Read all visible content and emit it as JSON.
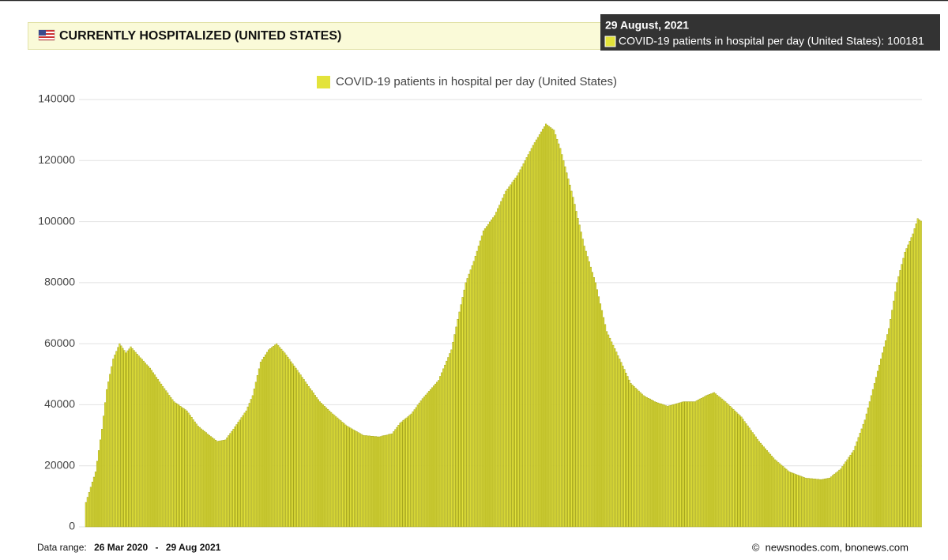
{
  "chart_data": {
    "type": "bar",
    "title": "CURRENTLY HOSPITALIZED (UNITED STATES)",
    "series": [
      {
        "name": "COVID-19 patients in hospital per day (United States)",
        "color": "#e3e33b",
        "border_color": "#a3a31a",
        "values": [
          8000,
          9700,
          11300,
          13000,
          14700,
          16300,
          18000,
          21500,
          25000,
          28500,
          32000,
          36300,
          40700,
          45000,
          47500,
          50000,
          52500,
          55000,
          56300,
          57500,
          58800,
          60000,
          59300,
          58500,
          57800,
          57000,
          57700,
          58300,
          59000,
          58400,
          57800,
          57200,
          56600,
          56000,
          55400,
          54900,
          54300,
          53700,
          53100,
          52600,
          52000,
          51300,
          50500,
          49800,
          49000,
          48300,
          47500,
          46800,
          46000,
          45300,
          44600,
          43900,
          43100,
          42400,
          41700,
          41000,
          40600,
          40300,
          39900,
          39500,
          39100,
          38800,
          38400,
          38000,
          37300,
          36600,
          35900,
          35100,
          34400,
          33700,
          33000,
          32600,
          32100,
          31700,
          31300,
          30900,
          30400,
          30000,
          29600,
          29200,
          28800,
          28400,
          28000,
          28100,
          28200,
          28300,
          28400,
          28500,
          29200,
          29900,
          30600,
          31300,
          32000,
          32800,
          33500,
          34300,
          35000,
          35800,
          36500,
          37300,
          38000,
          39300,
          40500,
          41800,
          43000,
          45200,
          47400,
          49600,
          51800,
          54000,
          54800,
          55600,
          56400,
          57200,
          58000,
          58400,
          58800,
          59200,
          59600,
          60000,
          59400,
          58800,
          58200,
          57600,
          57000,
          56300,
          55600,
          54900,
          54100,
          53400,
          52700,
          52000,
          51300,
          50500,
          49800,
          49000,
          48300,
          47500,
          46800,
          46000,
          45300,
          44600,
          43900,
          43100,
          42400,
          41700,
          41000,
          40500,
          40000,
          39500,
          39000,
          38500,
          38000,
          37500,
          37000,
          36600,
          36100,
          35700,
          35200,
          34800,
          34300,
          33900,
          33400,
          33000,
          32700,
          32400,
          32100,
          31800,
          31500,
          31200,
          30900,
          30600,
          30300,
          30000,
          29900,
          29900,
          29800,
          29800,
          29700,
          29700,
          29600,
          29600,
          29500,
          29500,
          29600,
          29800,
          29900,
          30000,
          30100,
          30300,
          30400,
          30500,
          31200,
          31900,
          32600,
          33300,
          34000,
          34400,
          34900,
          35300,
          35700,
          36100,
          36600,
          37000,
          37700,
          38400,
          39100,
          39900,
          40600,
          41300,
          42000,
          42600,
          43200,
          43800,
          44400,
          45000,
          45600,
          46200,
          46800,
          47400,
          48000,
          49300,
          50500,
          51800,
          53000,
          54300,
          55500,
          56800,
          58000,
          60500,
          63000,
          65500,
          68000,
          70400,
          72800,
          75200,
          77600,
          80000,
          81400,
          82800,
          84200,
          85600,
          87000,
          88700,
          90300,
          92000,
          93700,
          95300,
          97000,
          97700,
          98400,
          99100,
          99900,
          100600,
          101300,
          102000,
          103100,
          104300,
          105400,
          106600,
          107700,
          108900,
          110000,
          110700,
          111400,
          112100,
          112900,
          113600,
          114300,
          115000,
          116000,
          117000,
          118000,
          119000,
          120000,
          121000,
          122000,
          123000,
          124000,
          125000,
          125900,
          126800,
          127600,
          128500,
          129400,
          130300,
          131100,
          132000,
          131600,
          131200,
          130800,
          130400,
          130000,
          128500,
          127000,
          125500,
          124000,
          122000,
          120000,
          118000,
          116000,
          114000,
          112000,
          110000,
          108000,
          105700,
          103400,
          101100,
          98900,
          96600,
          94300,
          92000,
          90300,
          88600,
          86900,
          85100,
          83400,
          81700,
          80000,
          77700,
          75400,
          73100,
          70900,
          68600,
          66300,
          64000,
          62900,
          61800,
          60600,
          59500,
          58400,
          57300,
          56100,
          55000,
          53900,
          52700,
          51600,
          50400,
          49300,
          48100,
          47000,
          46500,
          46000,
          45500,
          45000,
          44500,
          44000,
          43500,
          43000,
          42700,
          42400,
          42100,
          41900,
          41600,
          41300,
          41000,
          40800,
          40600,
          40400,
          40300,
          40100,
          39900,
          39700,
          39500,
          39700,
          39800,
          40000,
          40100,
          40300,
          40400,
          40600,
          40700,
          40900,
          41000,
          41000,
          41000,
          41000,
          41000,
          41000,
          41000,
          41000,
          41300,
          41600,
          41900,
          42100,
          42400,
          42700,
          43000,
          43200,
          43400,
          43600,
          43800,
          44000,
          43600,
          43100,
          42700,
          42300,
          41900,
          41400,
          41000,
          40500,
          40000,
          39500,
          39000,
          38500,
          38000,
          37500,
          37000,
          36500,
          36000,
          35300,
          34500,
          33800,
          33100,
          32400,
          31600,
          30900,
          30200,
          29500,
          28700,
          28000,
          27400,
          26800,
          26200,
          25600,
          25000,
          24400,
          23800,
          23200,
          22600,
          22000,
          21600,
          21100,
          20700,
          20200,
          19800,
          19300,
          18900,
          18400,
          18000,
          17800,
          17600,
          17400,
          17200,
          17000,
          16800,
          16600,
          16400,
          16200,
          16000,
          15900,
          15900,
          15800,
          15800,
          15700,
          15700,
          15600,
          15600,
          15500,
          15500,
          15600,
          15700,
          15800,
          15900,
          16000,
          16400,
          16900,
          17300,
          17700,
          18100,
          18600,
          19000,
          19800,
          20500,
          21300,
          22000,
          22800,
          23500,
          24300,
          25000,
          26400,
          27900,
          29300,
          30700,
          32100,
          33600,
          35000,
          37000,
          39000,
          41000,
          43000,
          45000,
          47000,
          49000,
          51000,
          53000,
          55000,
          57000,
          59000,
          61000,
          63000,
          65000,
          68000,
          71000,
          74000,
          77000,
          80000,
          82000,
          84000,
          86000,
          88000,
          90000,
          91200,
          92400,
          93600,
          94800,
          96000,
          97700,
          99300,
          101000,
          100600,
          100181
        ]
      }
    ],
    "ylim": [
      0,
      140000
    ],
    "yticks": [
      0,
      20000,
      40000,
      60000,
      80000,
      100000,
      120000,
      140000
    ],
    "grid": true,
    "legend": "top",
    "tooltip": {
      "title": "29 August, 2021",
      "label": "COVID-19 patients in hospital per day (United States): 100181"
    }
  },
  "footer": {
    "range_label": "Data range:",
    "start": "26 Mar 2020",
    "separator": "-",
    "end": "29 Aug 2021",
    "credit": "©  newsnodes.com, bnonews.com"
  }
}
